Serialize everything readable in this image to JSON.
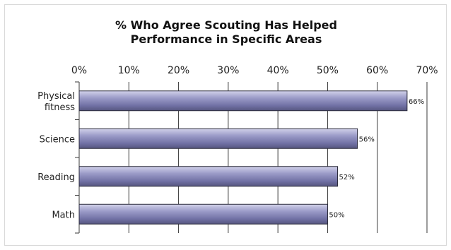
{
  "chart_data": {
    "type": "bar",
    "orientation": "horizontal",
    "title": "% Who Agree Scouting Has Helped Performance in Specific Areas",
    "title_lines": [
      "% Who Agree Scouting Has Helped",
      "Performance in Specific Areas"
    ],
    "categories": [
      [
        "Physical",
        "fitness"
      ],
      [
        "Science"
      ],
      [
        "Reading"
      ],
      [
        "Math"
      ]
    ],
    "category_names": [
      "Physical fitness",
      "Science",
      "Reading",
      "Math"
    ],
    "values": [
      66,
      56,
      52,
      50
    ],
    "value_labels": [
      "66%",
      "56%",
      "52%",
      "50%"
    ],
    "xlim": [
      0,
      70
    ],
    "xticks": [
      0,
      10,
      20,
      30,
      40,
      50,
      60,
      70
    ],
    "xtick_labels": [
      "0%",
      "10%",
      "20%",
      "30%",
      "40%",
      "50%",
      "60%",
      "70%"
    ],
    "x_axis_position": "top",
    "grid": "vertical",
    "bar_color": "#8080b0",
    "xlabel": "",
    "ylabel": ""
  }
}
